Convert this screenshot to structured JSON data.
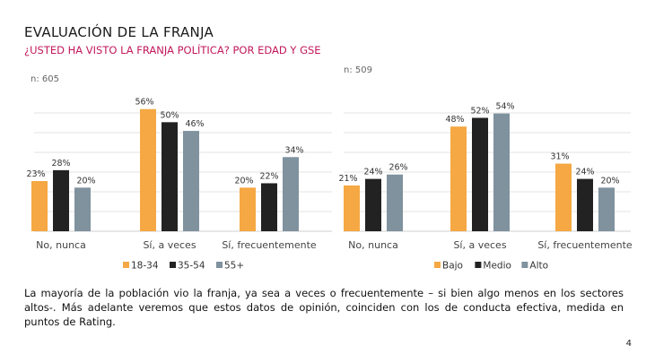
{
  "header": {
    "title": "EVALUACIÓN DE LA FRANJA",
    "subtitle": "¿USTED HA VISTO LA FRANJA POLÍTICA? POR EDAD Y GSE"
  },
  "chart_data": [
    {
      "type": "bar",
      "n_label": "n: 605",
      "categories": [
        "No, nunca",
        "Sí, a veces",
        "Sí, frecuentemente"
      ],
      "series": [
        {
          "name": "18-34",
          "color": "#f5a843",
          "values": [
            23,
            56,
            20
          ]
        },
        {
          "name": "35-54",
          "color": "#222222",
          "values": [
            28,
            50,
            22
          ]
        },
        {
          "name": "55+",
          "color": "#7f929e",
          "values": [
            20,
            46,
            34
          ]
        }
      ],
      "ylim": [
        0,
        60
      ],
      "unit": "%",
      "legend": "bottom"
    },
    {
      "type": "bar",
      "n_label": "n: 509",
      "categories": [
        "No, nunca",
        "Sí, a veces",
        "Sí, frecuentemente"
      ],
      "series": [
        {
          "name": "Bajo",
          "color": "#f5a843",
          "values": [
            21,
            48,
            31
          ]
        },
        {
          "name": "Medio",
          "color": "#222222",
          "values": [
            24,
            52,
            24
          ]
        },
        {
          "name": "Alto",
          "color": "#7f929e",
          "values": [
            26,
            54,
            20
          ]
        }
      ],
      "ylim": [
        0,
        60
      ],
      "unit": "%",
      "legend": "bottom"
    }
  ],
  "body": {
    "text": "La mayoría de la población vio la franja, ya sea a veces o frecuentemente – si bien algo menos en los sectores altos-. Más adelante veremos que estos datos de opinión, coinciden con los de conducta efectiva, medida en puntos de Rating."
  },
  "footer": {
    "page_number": "4"
  }
}
